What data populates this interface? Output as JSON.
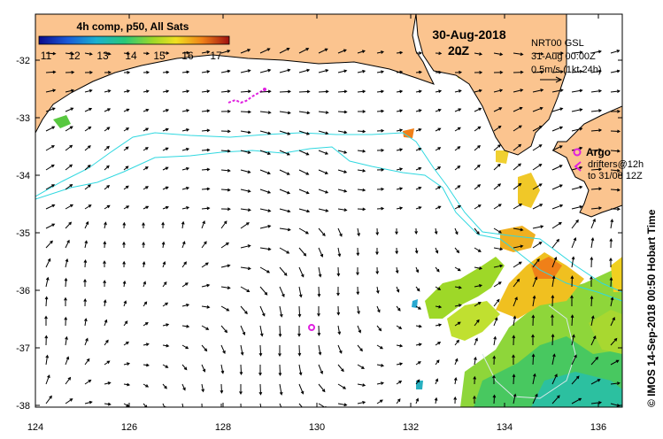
{
  "header": {
    "composite_label": "4h comp, p50, All Sats",
    "date": "30-Aug-2018",
    "time": "20Z",
    "current_source": "NRT00 GSL",
    "current_time": "31-Aug 00:00Z",
    "scale_label": "0.5m/s (1kt 24h)"
  },
  "colorbar": {
    "ticks": [
      "11",
      "12",
      "13",
      "14",
      "15",
      "16",
      "17"
    ],
    "min": 10.5,
    "max": 17.5
  },
  "legend": {
    "argo_label": "Argo",
    "drifters_label": "drifters@12h",
    "drifters_to": "to 31/08 12Z"
  },
  "axes": {
    "lon_ticks": [
      "124",
      "126",
      "128",
      "130",
      "132",
      "134",
      "136"
    ],
    "lat_ticks": [
      "-32",
      "-33",
      "-34",
      "-35",
      "-36",
      "-37",
      "-38"
    ],
    "lon_range": [
      124,
      136.5
    ],
    "lat_range": [
      -38.05,
      -31.35
    ]
  },
  "credit": "© IMOS 14-Sep-2018 00:50 Hobart Time",
  "colors": {
    "land": "#fbc48f",
    "isobath": "#30d8e0",
    "argo": "#e020e0"
  }
}
